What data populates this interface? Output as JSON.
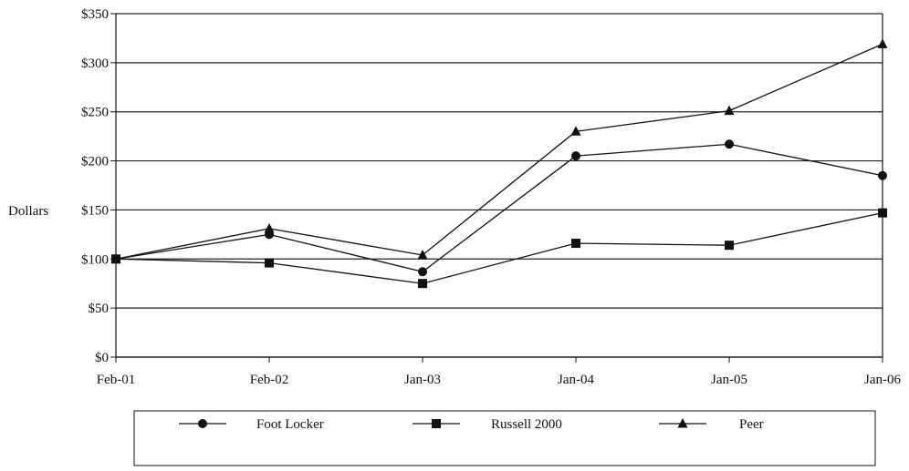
{
  "chart_data": {
    "type": "line",
    "categories": [
      "Feb-01",
      "Feb-02",
      "Jan-03",
      "Jan-04",
      "Jan-05",
      "Jan-06"
    ],
    "ylabel": "Dollars",
    "ylim": [
      0,
      350
    ],
    "yticks": [
      0,
      50,
      100,
      150,
      200,
      250,
      300,
      350
    ],
    "ytick_labels": [
      "$0",
      "$50",
      "$100",
      "$150",
      "$200",
      "$250",
      "$300",
      "$350"
    ],
    "grid": true,
    "legend_position": "bottom",
    "series": [
      {
        "name": "Foot Locker",
        "marker": "circle",
        "values": [
          100,
          125,
          87,
          205,
          217,
          185
        ]
      },
      {
        "name": "Russell 2000",
        "marker": "square",
        "values": [
          100,
          96,
          75,
          116,
          114,
          147
        ]
      },
      {
        "name": "Peer",
        "marker": "triangle",
        "values": [
          100,
          131,
          104,
          230,
          251,
          319
        ]
      }
    ],
    "colors": {
      "line": "#111111",
      "grid": "#222222",
      "background": "#ffffff"
    }
  }
}
